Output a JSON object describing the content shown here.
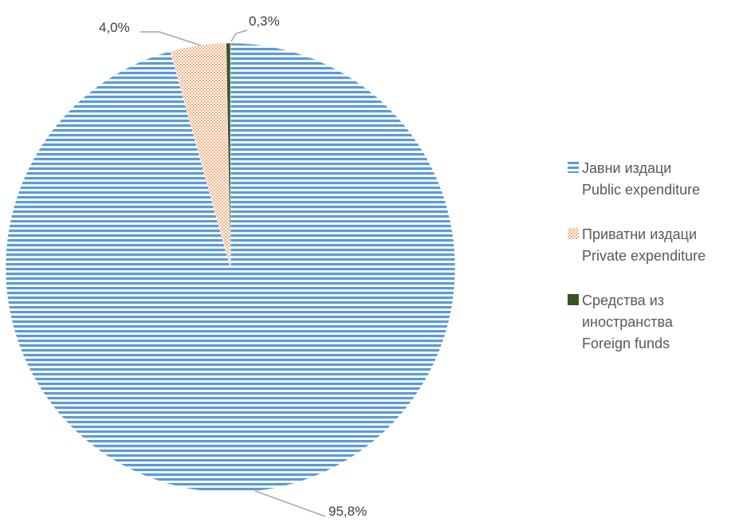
{
  "chart_data": {
    "type": "pie",
    "slices": [
      {
        "label_mk": "Јавни издаци",
        "label_en": "Public expenditure",
        "value": 95.8,
        "display": "95,8%",
        "color": "#5B9BD5",
        "pattern": "horizontal-stripes"
      },
      {
        "label_mk": "Приватни издаци",
        "label_en": "Private expenditure",
        "value": 4.0,
        "display": "4,0%",
        "color": "#F4B183",
        "pattern": "dotted-grid"
      },
      {
        "label_mk": "Средства из иностранства",
        "label_en": "Foreign funds",
        "value": 0.3,
        "display": "0,3%",
        "color": "#375623",
        "pattern": "solid"
      }
    ],
    "legend_position": "right"
  },
  "legend": {
    "items": [
      {
        "lines": [
          "Јавни издаци",
          "Public expenditure"
        ]
      },
      {
        "lines": [
          "Приватни издаци",
          "Private expenditure"
        ]
      },
      {
        "lines": [
          "Средства из",
          "иностранства",
          "Foreign funds"
        ]
      }
    ]
  }
}
